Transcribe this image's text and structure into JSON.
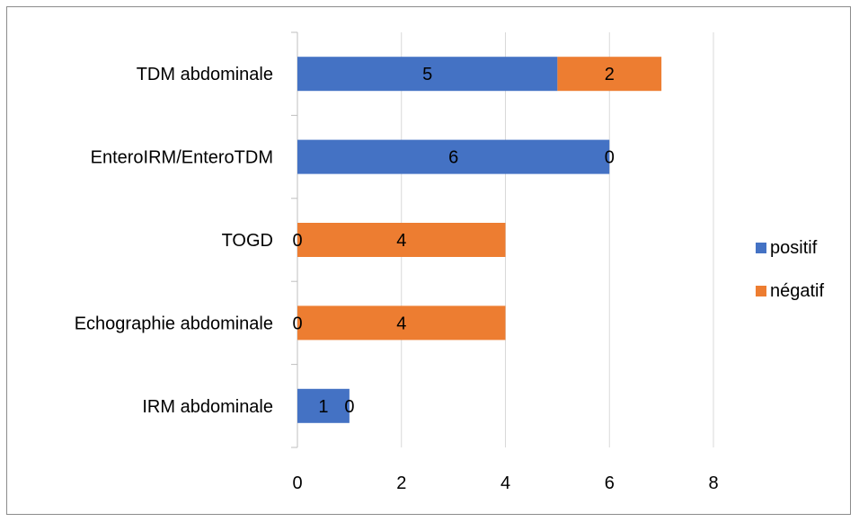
{
  "chart_data": {
    "type": "bar",
    "orientation": "horizontal",
    "stacked": true,
    "categories": [
      "TDM abdominale",
      "EnteroIRM/EnteroTDM",
      "TOGD",
      "Echographie abdominale",
      "IRM abdominale"
    ],
    "series": [
      {
        "name": "positif",
        "color": "#4472C4",
        "values": [
          5,
          6,
          0,
          0,
          1
        ]
      },
      {
        "name": "négatif",
        "color": "#ED7D31",
        "values": [
          2,
          0,
          4,
          4,
          0
        ]
      }
    ],
    "xlim": [
      0,
      8
    ],
    "xticks": [
      "0",
      "2",
      "4",
      "6",
      "8"
    ],
    "grid": "vertical",
    "legend_position": "right",
    "data_labels": true
  }
}
